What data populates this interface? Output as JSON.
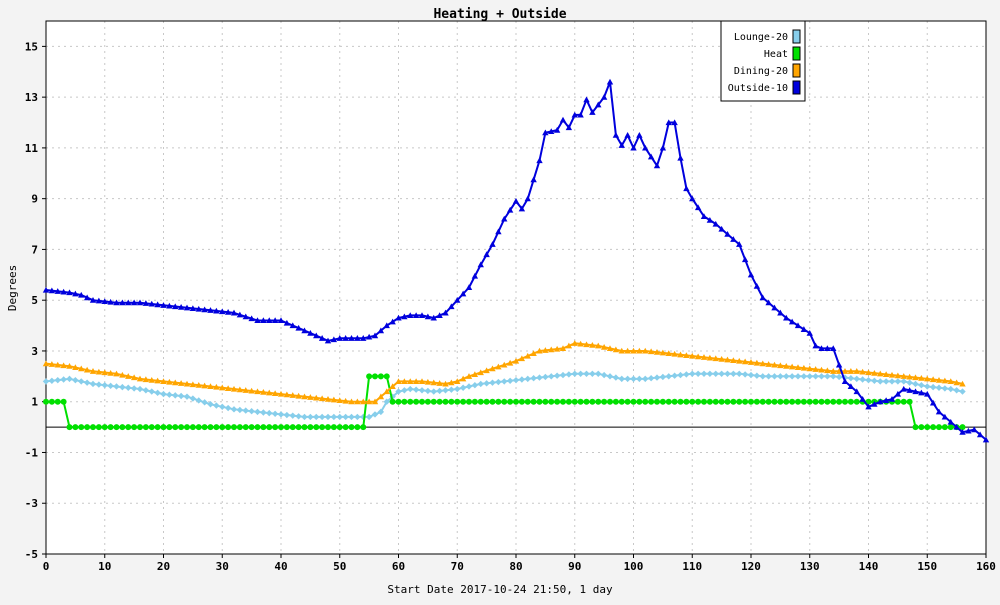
{
  "chart_data": {
    "type": "line",
    "title": "Heating + Outside",
    "xlabel": "Start Date 2017-10-24 21:50, 1 day",
    "ylabel": "Degrees",
    "xlim": [
      0,
      160
    ],
    "ylim": [
      -5,
      16
    ],
    "x_ticks": [
      0,
      10,
      20,
      30,
      40,
      50,
      60,
      70,
      80,
      90,
      100,
      110,
      120,
      130,
      140,
      150,
      160
    ],
    "y_ticks": [
      -5,
      -3,
      -1,
      1,
      3,
      5,
      7,
      9,
      11,
      13,
      15
    ],
    "grid": true,
    "legend_position": "top-right",
    "zero_line": 0,
    "series": [
      {
        "name": "Lounge-20",
        "color": "#87ceeb",
        "marker": "diamond",
        "points": [
          [
            0,
            1.8
          ],
          [
            4,
            1.9
          ],
          [
            8,
            1.7
          ],
          [
            12,
            1.6
          ],
          [
            16,
            1.5
          ],
          [
            20,
            1.3
          ],
          [
            24,
            1.2
          ],
          [
            28,
            0.9
          ],
          [
            32,
            0.7
          ],
          [
            36,
            0.6
          ],
          [
            40,
            0.5
          ],
          [
            44,
            0.4
          ],
          [
            48,
            0.4
          ],
          [
            52,
            0.4
          ],
          [
            55,
            0.4
          ],
          [
            57,
            0.6
          ],
          [
            58,
            1.0
          ],
          [
            60,
            1.4
          ],
          [
            62,
            1.5
          ],
          [
            66,
            1.4
          ],
          [
            70,
            1.5
          ],
          [
            74,
            1.7
          ],
          [
            78,
            1.8
          ],
          [
            82,
            1.9
          ],
          [
            86,
            2.0
          ],
          [
            90,
            2.1
          ],
          [
            94,
            2.1
          ],
          [
            98,
            1.9
          ],
          [
            102,
            1.9
          ],
          [
            106,
            2.0
          ],
          [
            110,
            2.1
          ],
          [
            114,
            2.1
          ],
          [
            118,
            2.1
          ],
          [
            122,
            2.0
          ],
          [
            126,
            2.0
          ],
          [
            130,
            2.0
          ],
          [
            134,
            2.0
          ],
          [
            138,
            1.9
          ],
          [
            142,
            1.8
          ],
          [
            146,
            1.8
          ],
          [
            150,
            1.6
          ],
          [
            154,
            1.5
          ],
          [
            156,
            1.4
          ]
        ]
      },
      {
        "name": "Heat",
        "color": "#00e000",
        "marker": "circle",
        "points": [
          [
            0,
            1
          ],
          [
            3,
            1
          ],
          [
            4,
            0
          ],
          [
            54,
            0
          ],
          [
            55,
            2
          ],
          [
            58,
            2
          ],
          [
            59,
            1
          ],
          [
            147,
            1
          ],
          [
            148,
            0
          ],
          [
            156,
            0
          ]
        ]
      },
      {
        "name": "Dining-20",
        "color": "#ffa500",
        "marker": "triangle",
        "points": [
          [
            0,
            2.5
          ],
          [
            4,
            2.4
          ],
          [
            8,
            2.2
          ],
          [
            12,
            2.1
          ],
          [
            16,
            1.9
          ],
          [
            20,
            1.8
          ],
          [
            24,
            1.7
          ],
          [
            28,
            1.6
          ],
          [
            32,
            1.5
          ],
          [
            36,
            1.4
          ],
          [
            40,
            1.3
          ],
          [
            44,
            1.2
          ],
          [
            48,
            1.1
          ],
          [
            52,
            1.0
          ],
          [
            56,
            1.0
          ],
          [
            58,
            1.4
          ],
          [
            60,
            1.8
          ],
          [
            64,
            1.8
          ],
          [
            68,
            1.7
          ],
          [
            70,
            1.8
          ],
          [
            72,
            2.0
          ],
          [
            76,
            2.3
          ],
          [
            80,
            2.6
          ],
          [
            84,
            3.0
          ],
          [
            88,
            3.1
          ],
          [
            90,
            3.3
          ],
          [
            94,
            3.2
          ],
          [
            98,
            3.0
          ],
          [
            102,
            3.0
          ],
          [
            106,
            2.9
          ],
          [
            110,
            2.8
          ],
          [
            114,
            2.7
          ],
          [
            118,
            2.6
          ],
          [
            122,
            2.5
          ],
          [
            126,
            2.4
          ],
          [
            130,
            2.3
          ],
          [
            134,
            2.2
          ],
          [
            138,
            2.2
          ],
          [
            142,
            2.1
          ],
          [
            146,
            2.0
          ],
          [
            150,
            1.9
          ],
          [
            154,
            1.8
          ],
          [
            156,
            1.7
          ]
        ]
      },
      {
        "name": "Outside-10",
        "color": "#0000dd",
        "marker": "triangle",
        "points": [
          [
            0,
            5.4
          ],
          [
            4,
            5.3
          ],
          [
            6,
            5.2
          ],
          [
            8,
            5.0
          ],
          [
            12,
            4.9
          ],
          [
            16,
            4.9
          ],
          [
            20,
            4.8
          ],
          [
            24,
            4.7
          ],
          [
            28,
            4.6
          ],
          [
            32,
            4.5
          ],
          [
            36,
            4.2
          ],
          [
            40,
            4.2
          ],
          [
            42,
            4.0
          ],
          [
            44,
            3.8
          ],
          [
            46,
            3.6
          ],
          [
            48,
            3.4
          ],
          [
            50,
            3.5
          ],
          [
            52,
            3.5
          ],
          [
            54,
            3.5
          ],
          [
            56,
            3.6
          ],
          [
            58,
            4.0
          ],
          [
            60,
            4.3
          ],
          [
            62,
            4.4
          ],
          [
            64,
            4.4
          ],
          [
            66,
            4.3
          ],
          [
            68,
            4.5
          ],
          [
            70,
            5.0
          ],
          [
            72,
            5.5
          ],
          [
            74,
            6.4
          ],
          [
            76,
            7.2
          ],
          [
            78,
            8.2
          ],
          [
            80,
            8.9
          ],
          [
            81,
            8.6
          ],
          [
            82,
            9.0
          ],
          [
            84,
            10.5
          ],
          [
            85,
            11.6
          ],
          [
            87,
            11.7
          ],
          [
            88,
            12.1
          ],
          [
            89,
            11.8
          ],
          [
            90,
            12.3
          ],
          [
            91,
            12.3
          ],
          [
            92,
            12.9
          ],
          [
            93,
            12.4
          ],
          [
            94,
            12.7
          ],
          [
            95,
            13.0
          ],
          [
            96,
            13.6
          ],
          [
            97,
            11.5
          ],
          [
            98,
            11.1
          ],
          [
            99,
            11.5
          ],
          [
            100,
            11.0
          ],
          [
            101,
            11.5
          ],
          [
            102,
            11.0
          ],
          [
            104,
            10.3
          ],
          [
            105,
            11.0
          ],
          [
            106,
            12.0
          ],
          [
            107,
            12.0
          ],
          [
            108,
            10.6
          ],
          [
            109,
            9.4
          ],
          [
            110,
            9.0
          ],
          [
            112,
            8.3
          ],
          [
            114,
            8.0
          ],
          [
            116,
            7.6
          ],
          [
            118,
            7.2
          ],
          [
            120,
            6.0
          ],
          [
            122,
            5.1
          ],
          [
            124,
            4.7
          ],
          [
            126,
            4.3
          ],
          [
            128,
            4.0
          ],
          [
            130,
            3.7
          ],
          [
            131,
            3.2
          ],
          [
            132,
            3.1
          ],
          [
            134,
            3.1
          ],
          [
            136,
            1.8
          ],
          [
            138,
            1.4
          ],
          [
            140,
            0.8
          ],
          [
            142,
            1.0
          ],
          [
            144,
            1.1
          ],
          [
            146,
            1.5
          ],
          [
            148,
            1.4
          ],
          [
            150,
            1.3
          ],
          [
            152,
            0.6
          ],
          [
            154,
            0.2
          ],
          [
            156,
            -0.2
          ],
          [
            158,
            -0.1
          ],
          [
            160,
            -0.5
          ]
        ]
      }
    ]
  }
}
